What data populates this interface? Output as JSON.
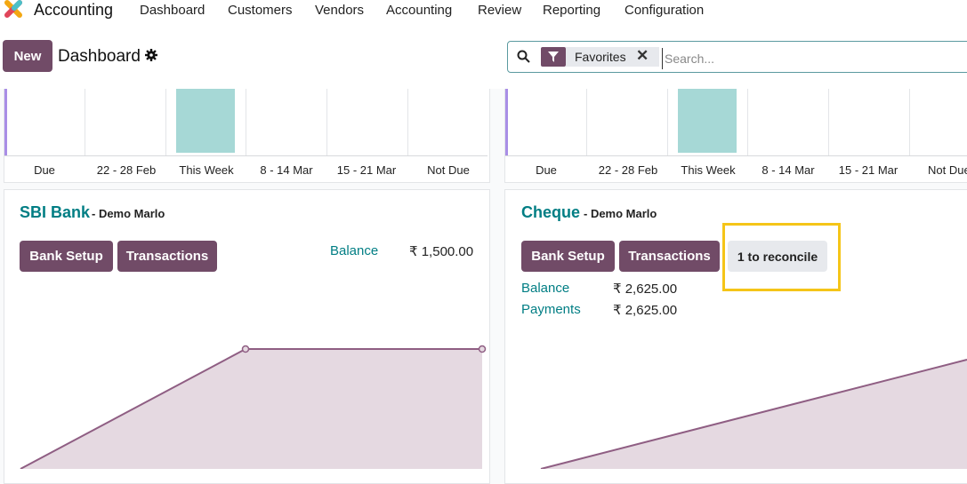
{
  "app": {
    "title": "Accounting"
  },
  "menu": [
    "Dashboard",
    "Customers",
    "Vendors",
    "Accounting",
    "Review",
    "Reporting",
    "Configuration"
  ],
  "control": {
    "new_label": "New",
    "page_title": "Dashboard"
  },
  "search": {
    "facet_label": "Favorites",
    "placeholder": "Search..."
  },
  "aging_chart": {
    "categories": [
      "Due",
      "22 - 28 Feb",
      "This Week",
      "8 - 14 Mar",
      "15 - 21 Mar",
      "Not Due"
    ]
  },
  "journals": [
    {
      "name": "SBI Bank",
      "company": "- Demo Marlo",
      "buttons": [
        "Bank Setup",
        "Transactions"
      ],
      "balance_label": "Balance",
      "balance_value": "₹ 1,500.00"
    },
    {
      "name": "Cheque",
      "company": "- Demo Marlo",
      "buttons": [
        "Bank Setup",
        "Transactions"
      ],
      "reconcile_label": "1 to reconcile",
      "balance_label": "Balance",
      "balance_value": "₹ 2,625.00",
      "payments_label": "Payments",
      "payments_value": "₹ 2,625.00"
    }
  ],
  "colors": {
    "brand": "#714b67",
    "accent": "#017e84",
    "bar": "#a6d8d6",
    "highlight": "#f5c518",
    "graph_fill": "#e5d9e1",
    "graph_line": "#8f5e83"
  }
}
